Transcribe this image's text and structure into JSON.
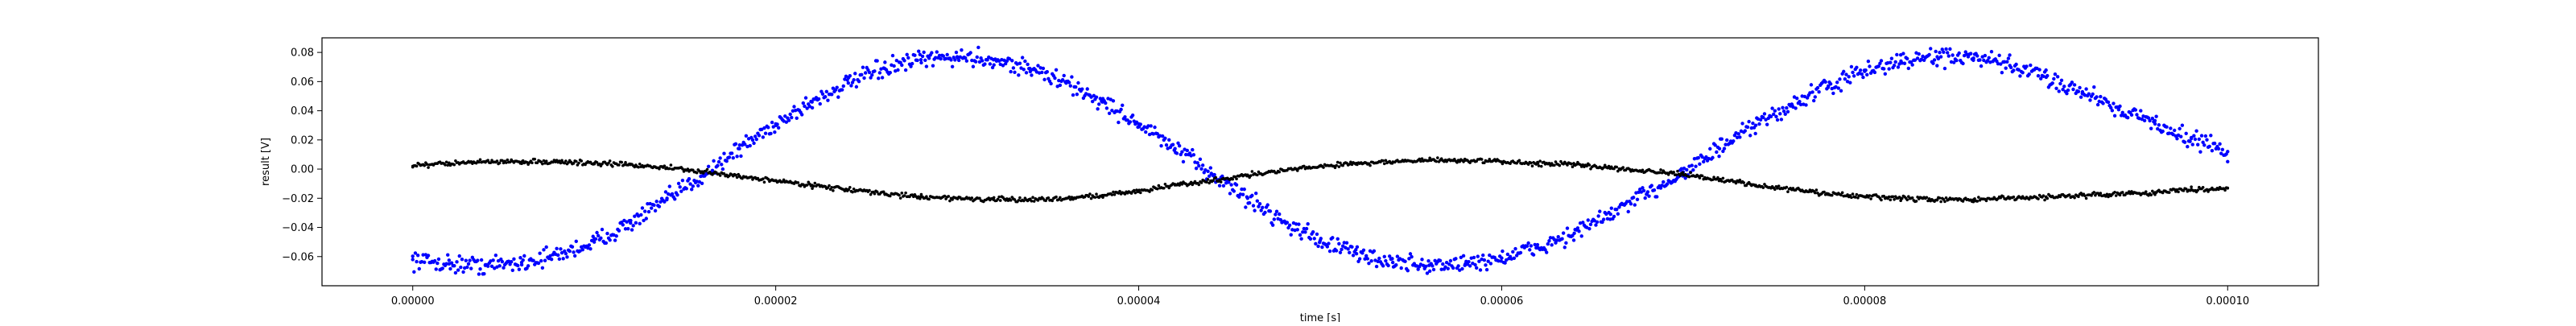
{
  "chart_data": {
    "type": "scatter",
    "title": "",
    "xlabel": "time [s]",
    "ylabel": "result [V]",
    "xlim": [
      -5e-06,
      0.000105
    ],
    "ylim": [
      -0.08,
      0.09
    ],
    "xticks": [
      0,
      2e-05,
      4e-05,
      6e-05,
      8e-05,
      0.0001
    ],
    "xtick_labels": [
      "0.00000",
      "0.00002",
      "0.00004",
      "0.00006",
      "0.00008",
      "0.00010"
    ],
    "yticks": [
      -0.06,
      -0.04,
      -0.02,
      0.0,
      0.02,
      0.04,
      0.06,
      0.08
    ],
    "ytick_labels": [
      "−0.06",
      "−0.04",
      "−0.02",
      "0.00",
      "0.02",
      "0.04",
      "0.06",
      "0.08"
    ],
    "grid": false,
    "legend": null,
    "series": [
      {
        "color": "#0000ff",
        "marker_size": 2.2,
        "noise": 0.003,
        "x": [
          0,
          2e-06,
          4e-06,
          6e-06,
          8e-06,
          1e-05,
          1.2e-05,
          1.4e-05,
          1.6e-05,
          1.8e-05,
          2e-05,
          2.2e-05,
          2.4e-05,
          2.6e-05,
          2.8e-05,
          3e-05,
          3.2e-05,
          3.4e-05,
          3.6e-05,
          3.8e-05,
          4e-05,
          4.2e-05,
          4.4e-05,
          4.6e-05,
          4.8e-05,
          5e-05,
          5.2e-05,
          5.4e-05,
          5.6e-05,
          5.8e-05,
          6e-05,
          6.2e-05,
          6.4e-05,
          6.6e-05,
          6.8e-05,
          7e-05,
          7.2e-05,
          7.4e-05,
          7.6e-05,
          7.8e-05,
          8e-05,
          8.2e-05,
          8.4e-05,
          8.6e-05,
          8.8e-05,
          9e-05,
          9.2e-05,
          9.4e-05,
          9.6e-05,
          9.8e-05,
          0.0001
        ],
        "y": [
          -0.062,
          -0.065,
          -0.066,
          -0.064,
          -0.059,
          -0.05,
          -0.037,
          -0.021,
          -0.004,
          0.014,
          0.031,
          0.046,
          0.059,
          0.069,
          0.075,
          0.077,
          0.075,
          0.069,
          0.059,
          0.046,
          0.031,
          0.014,
          -0.003,
          -0.02,
          -0.036,
          -0.049,
          -0.058,
          -0.064,
          -0.066,
          -0.065,
          -0.061,
          -0.054,
          -0.044,
          -0.031,
          -0.017,
          -0.002,
          0.014,
          0.03,
          0.044,
          0.057,
          0.067,
          0.074,
          0.077,
          0.076,
          0.071,
          0.063,
          0.053,
          0.042,
          0.031,
          0.021,
          0.012
        ]
      },
      {
        "color": "#000000",
        "marker_size": 1.8,
        "noise": 0.0008,
        "x": [
          0,
          2e-06,
          4e-06,
          6e-06,
          8e-06,
          1e-05,
          1.2e-05,
          1.4e-05,
          1.6e-05,
          1.8e-05,
          2e-05,
          2.2e-05,
          2.4e-05,
          2.6e-05,
          2.8e-05,
          3e-05,
          3.2e-05,
          3.4e-05,
          3.6e-05,
          3.8e-05,
          4e-05,
          4.2e-05,
          4.4e-05,
          4.6e-05,
          4.8e-05,
          5e-05,
          5.2e-05,
          5.4e-05,
          5.6e-05,
          5.8e-05,
          6e-05,
          6.2e-05,
          6.4e-05,
          6.6e-05,
          6.8e-05,
          7e-05,
          7.2e-05,
          7.4e-05,
          7.6e-05,
          7.8e-05,
          8e-05,
          8.2e-05,
          8.4e-05,
          8.6e-05,
          8.8e-05,
          9e-05,
          9.2e-05,
          9.4e-05,
          9.6e-05,
          9.8e-05,
          0.0001
        ],
        "y": [
          0.002,
          0.004,
          0.005,
          0.005,
          0.005,
          0.004,
          0.003,
          0.001,
          -0.002,
          -0.005,
          -0.008,
          -0.011,
          -0.014,
          -0.017,
          -0.019,
          -0.02,
          -0.021,
          -0.021,
          -0.02,
          -0.018,
          -0.015,
          -0.011,
          -0.008,
          -0.004,
          -0.001,
          0.002,
          0.004,
          0.005,
          0.006,
          0.006,
          0.005,
          0.004,
          0.003,
          0.001,
          -0.001,
          -0.004,
          -0.007,
          -0.011,
          -0.014,
          -0.017,
          -0.019,
          -0.02,
          -0.021,
          -0.021,
          -0.02,
          -0.019,
          -0.018,
          -0.017,
          -0.016,
          -0.014,
          -0.013
        ]
      }
    ]
  }
}
